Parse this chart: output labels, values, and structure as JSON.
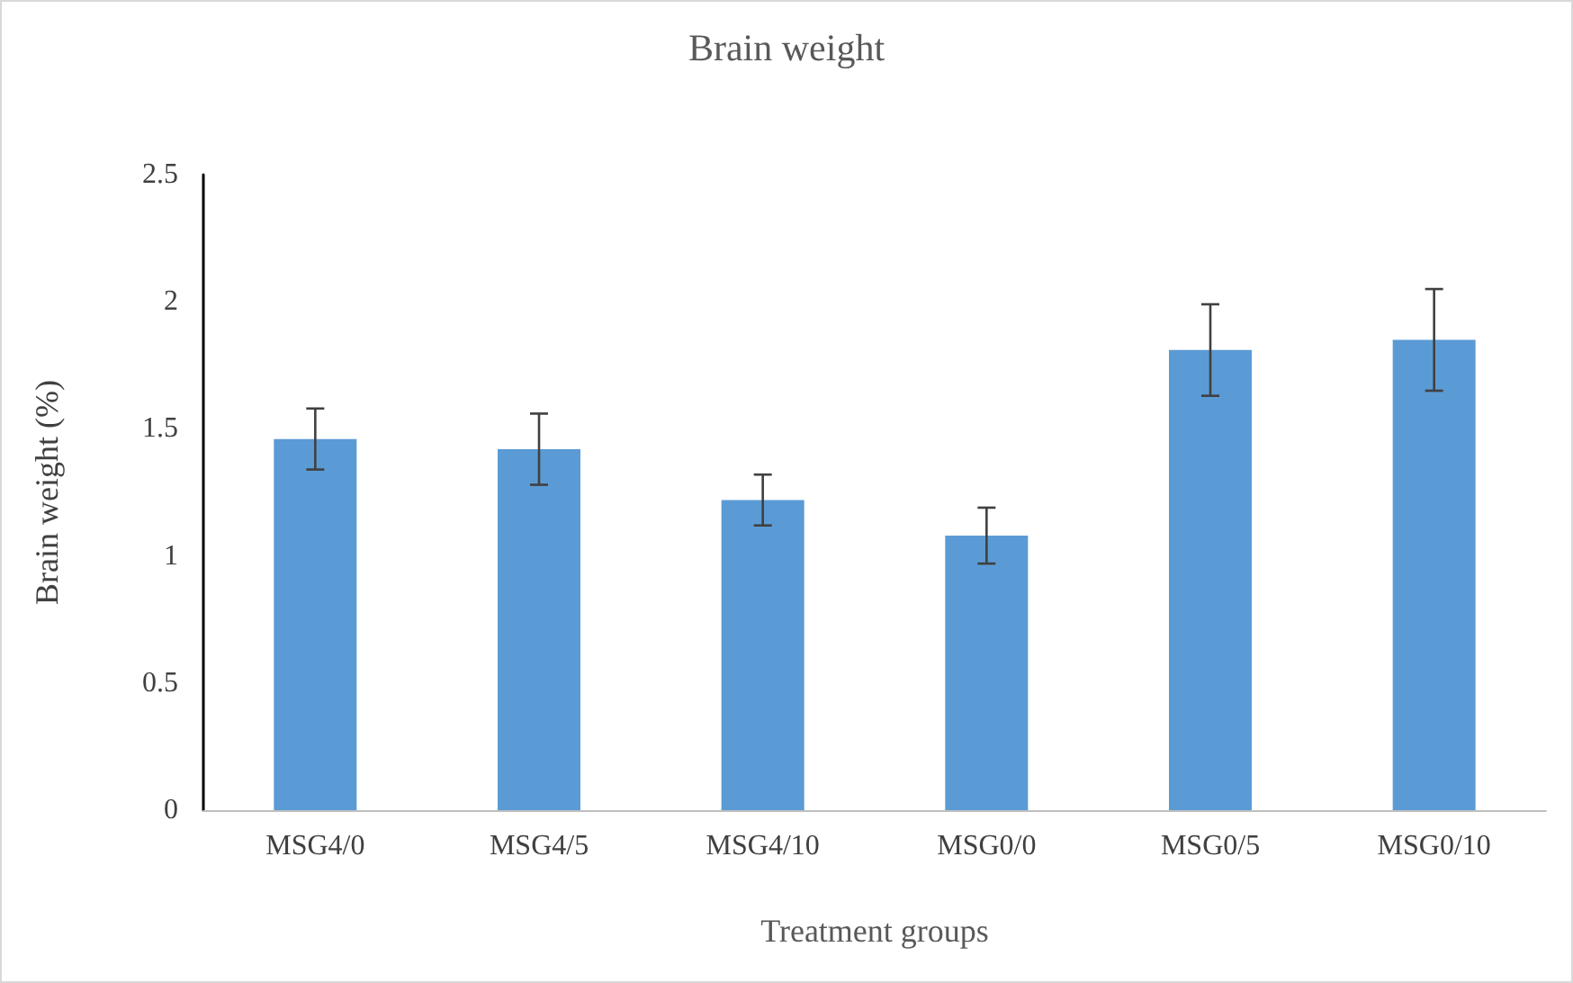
{
  "chart_data": {
    "type": "bar",
    "title": "Brain weight",
    "xlabel": "Treatment groups",
    "ylabel": "Brain weight (%)",
    "categories": [
      "MSG4/0",
      "MSG4/5",
      "MSG4/10",
      "MSG0/0",
      "MSG0/5",
      "MSG0/10"
    ],
    "series": [
      {
        "color": "#5b9bd5",
        "values": [
          1.46,
          1.42,
          1.22,
          1.08,
          1.81,
          1.85
        ],
        "errors": [
          0.12,
          0.14,
          0.1,
          0.11,
          0.18,
          0.2
        ]
      }
    ],
    "ylim": [
      0,
      2.5
    ],
    "yticks": [
      0,
      0.5,
      1,
      1.5,
      2,
      2.5
    ],
    "grid": false
  }
}
